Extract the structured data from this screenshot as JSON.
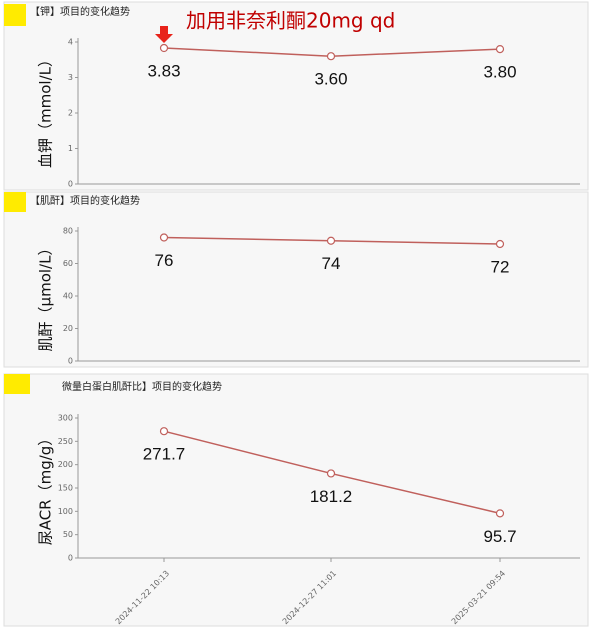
{
  "chart_data": [
    {
      "type": "line",
      "title": "【钾】项目的变化趋势",
      "annotation": "加用非奈利酮20mg qd",
      "y_label": "血钾（mmol/L）",
      "ylim": [
        0,
        4
      ],
      "yticks": [
        0,
        1,
        2,
        3,
        4
      ],
      "series": [
        {
          "color": "#c0605c",
          "values": [
            3.83,
            3.6,
            3.8
          ],
          "value_labels": [
            "3.83",
            "3.60",
            "3.80"
          ]
        }
      ]
    },
    {
      "type": "line",
      "title": "【肌酐】项目的变化趋势",
      "y_label": "肌酐（μmol/L）",
      "ylim": [
        0,
        80
      ],
      "yticks": [
        0,
        20,
        40,
        60,
        80
      ],
      "series": [
        {
          "color": "#c0605c",
          "values": [
            76,
            74,
            72
          ]
        }
      ]
    },
    {
      "type": "line",
      "title": "微量白蛋白肌酐比】项目的变化趋势",
      "y_label": "尿ACR（mg/g）",
      "categories": [
        "2024-11-22 10:13",
        "2024-12-27 11:01",
        "2025-03-21 09:54"
      ],
      "ylim": [
        0,
        300
      ],
      "yticks": [
        0,
        50,
        100,
        150,
        200,
        250,
        300
      ],
      "series": [
        {
          "color": "#c0605c",
          "values": [
            271.7,
            181.2,
            95.7
          ]
        }
      ]
    }
  ]
}
